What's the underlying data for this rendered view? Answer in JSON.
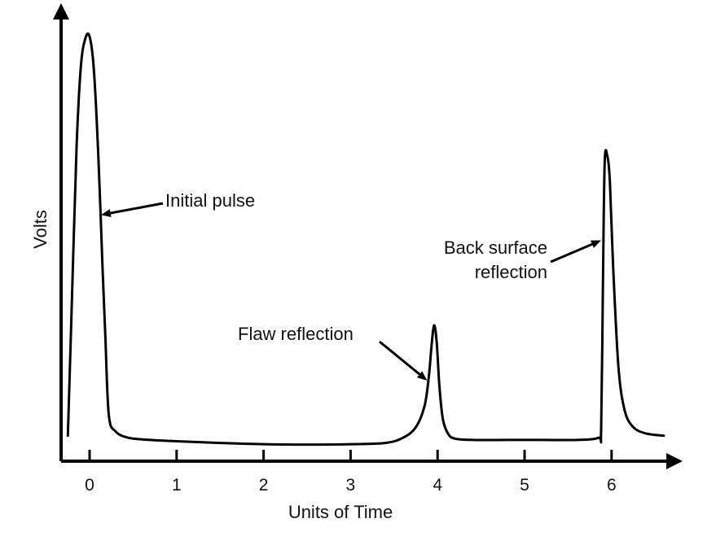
{
  "chart_data": {
    "type": "line",
    "title": "",
    "xlabel": "Units of Time",
    "ylabel": "Volts",
    "x_ticks": [
      "0",
      "1",
      "2",
      "3",
      "4",
      "5",
      "6"
    ],
    "xlim": [
      -0.35,
      6.7
    ],
    "ylim": [
      0,
      100
    ],
    "grid": false,
    "legend": "none",
    "line_color": "#000000",
    "series": [
      {
        "x": [
          -0.25,
          -0.2,
          -0.15,
          -0.1,
          -0.05,
          0.0,
          0.05,
          0.1,
          0.15,
          0.18,
          0.22,
          0.3,
          0.45,
          0.7,
          1.0,
          1.5,
          2.0,
          2.5,
          3.0,
          3.4,
          3.6,
          3.75,
          3.85,
          3.9,
          3.93,
          3.96,
          3.99,
          4.02,
          4.06,
          4.12,
          4.2,
          4.4,
          4.8,
          5.2,
          5.6,
          5.85,
          5.88,
          5.9,
          5.92,
          5.95,
          5.98,
          6.02,
          6.08,
          6.15,
          6.25,
          6.4,
          6.6
        ],
        "y": [
          6,
          40,
          74,
          93,
          99.5,
          100,
          92,
          72,
          45,
          30,
          11,
          7,
          5.5,
          5,
          4.7,
          4.3,
          4,
          3.9,
          4,
          4.3,
          5.5,
          8,
          13,
          20,
          27,
          32,
          28,
          18,
          10,
          6.5,
          5.3,
          5,
          5,
          5,
          5,
          5.5,
          7.5,
          40,
          70,
          72,
          66,
          45,
          22,
          12,
          8,
          6.5,
          6
        ]
      }
    ],
    "annotations": [
      {
        "text": [
          "Initial pulse"
        ],
        "target_x": 0.13,
        "target_y": 58
      },
      {
        "text": [
          "Flaw reflection"
        ],
        "target_x": 3.88,
        "target_y": 19
      },
      {
        "text": [
          "Back surface",
          "reflection"
        ],
        "target_x": 5.88,
        "target_y": 52
      }
    ]
  }
}
